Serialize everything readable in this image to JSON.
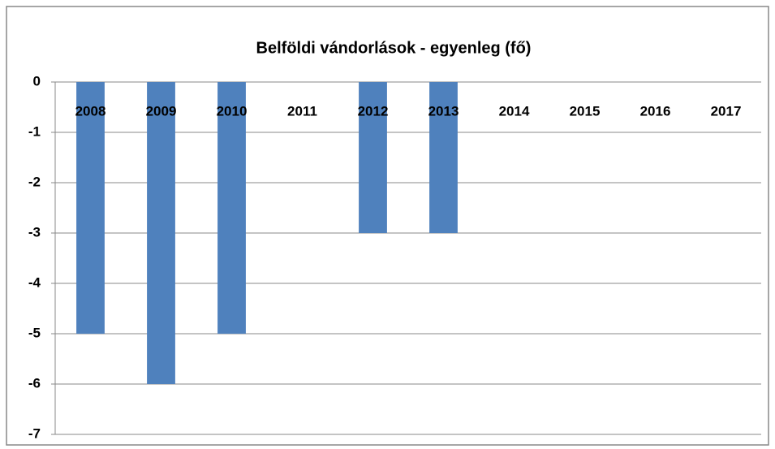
{
  "chart_data": {
    "type": "bar",
    "title": "Belföldi vándorlások - egyenleg (fő)",
    "categories": [
      "2008",
      "2009",
      "2010",
      "2011",
      "2012",
      "2013",
      "2014",
      "2015",
      "2016",
      "2017"
    ],
    "values": [
      -5,
      -6,
      -5,
      0,
      -3,
      -3,
      0,
      0,
      0,
      0
    ],
    "color": "#4f81bd",
    "ylim": [
      -7,
      0
    ],
    "yticks": [
      0,
      -1,
      -2,
      -3,
      -4,
      -5,
      -6,
      -7
    ],
    "grid": true
  }
}
